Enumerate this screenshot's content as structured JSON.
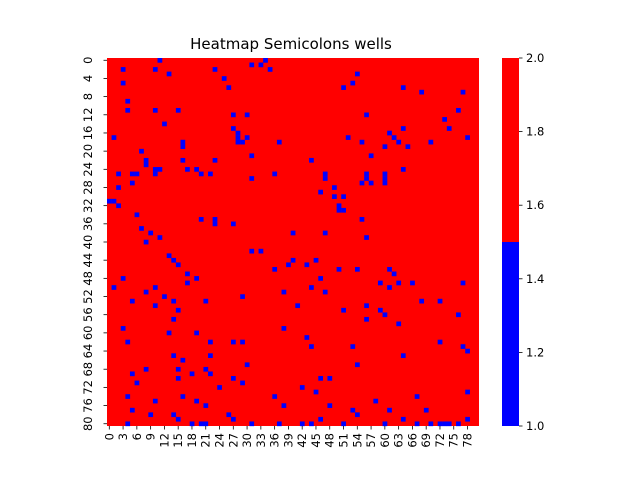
{
  "chart_data": {
    "type": "heatmap",
    "title": "Heatmap Semicolons wells",
    "xlabel": "",
    "ylabel": "",
    "rows": 81,
    "cols": 81,
    "x_tick_labels": [
      "0",
      "3",
      "6",
      "9",
      "12",
      "15",
      "18",
      "21",
      "24",
      "27",
      "30",
      "33",
      "36",
      "39",
      "42",
      "45",
      "48",
      "51",
      "54",
      "57",
      "60",
      "63",
      "66",
      "69",
      "72",
      "75",
      "78"
    ],
    "y_tick_labels": [
      "0",
      "4",
      "8",
      "12",
      "16",
      "20",
      "24",
      "28",
      "32",
      "36",
      "40",
      "44",
      "48",
      "52",
      "56",
      "60",
      "64",
      "68",
      "72",
      "76",
      "80"
    ],
    "colorbar": {
      "range": [
        1.0,
        2.0
      ],
      "boundary": 1.5,
      "tick_labels": [
        "1.0",
        "1.2",
        "1.4",
        "1.6",
        "1.8",
        "2.0"
      ],
      "colors": {
        "low": "#0000ff",
        "high": "#ff0000"
      }
    },
    "background_value": 2,
    "low_value": 1,
    "low_value_cells": [
      [
        0,
        11
      ],
      [
        0,
        34
      ],
      [
        1,
        33
      ],
      [
        1,
        31
      ],
      [
        2,
        3
      ],
      [
        2,
        10
      ],
      [
        2,
        23
      ],
      [
        2,
        35
      ],
      [
        3,
        13
      ],
      [
        3,
        54
      ],
      [
        4,
        25
      ],
      [
        5,
        3
      ],
      [
        5,
        53
      ],
      [
        6,
        26
      ],
      [
        6,
        51
      ],
      [
        6,
        64
      ],
      [
        7,
        68
      ],
      [
        7,
        77
      ],
      [
        9,
        4
      ],
      [
        11,
        4
      ],
      [
        11,
        10
      ],
      [
        11,
        15
      ],
      [
        11,
        76
      ],
      [
        12,
        27
      ],
      [
        12,
        30
      ],
      [
        12,
        56
      ],
      [
        13,
        73
      ],
      [
        14,
        12
      ],
      [
        15,
        27
      ],
      [
        15,
        64
      ],
      [
        15,
        74
      ],
      [
        16,
        28
      ],
      [
        16,
        61
      ],
      [
        17,
        1
      ],
      [
        17,
        28
      ],
      [
        17,
        30
      ],
      [
        17,
        52
      ],
      [
        17,
        62
      ],
      [
        17,
        78
      ],
      [
        18,
        16
      ],
      [
        18,
        28
      ],
      [
        18,
        29
      ],
      [
        18,
        37
      ],
      [
        18,
        55
      ],
      [
        18,
        63
      ],
      [
        18,
        70
      ],
      [
        19,
        16
      ],
      [
        19,
        60
      ],
      [
        19,
        65
      ],
      [
        20,
        7
      ],
      [
        21,
        31
      ],
      [
        21,
        57
      ],
      [
        22,
        8
      ],
      [
        22,
        16
      ],
      [
        22,
        23
      ],
      [
        22,
        44
      ],
      [
        23,
        8
      ],
      [
        24,
        10
      ],
      [
        24,
        11
      ],
      [
        24,
        17
      ],
      [
        24,
        19
      ],
      [
        24,
        64
      ],
      [
        25,
        2
      ],
      [
        25,
        5
      ],
      [
        25,
        6
      ],
      [
        25,
        10
      ],
      [
        25,
        20
      ],
      [
        25,
        22
      ],
      [
        25,
        36
      ],
      [
        25,
        47
      ],
      [
        25,
        56
      ],
      [
        25,
        60
      ],
      [
        26,
        31
      ],
      [
        26,
        47
      ],
      [
        26,
        56
      ],
      [
        26,
        60
      ],
      [
        27,
        5
      ],
      [
        27,
        55
      ],
      [
        27,
        57
      ],
      [
        27,
        60
      ],
      [
        28,
        2
      ],
      [
        28,
        49
      ],
      [
        29,
        46
      ],
      [
        30,
        49
      ],
      [
        30,
        51
      ],
      [
        31,
        0
      ],
      [
        31,
        1
      ],
      [
        32,
        2
      ],
      [
        32,
        50
      ],
      [
        33,
        50
      ],
      [
        33,
        51
      ],
      [
        34,
        6
      ],
      [
        35,
        20
      ],
      [
        35,
        23
      ],
      [
        35,
        55
      ],
      [
        36,
        23
      ],
      [
        36,
        27
      ],
      [
        37,
        7
      ],
      [
        38,
        9
      ],
      [
        38,
        40
      ],
      [
        38,
        47
      ],
      [
        39,
        11
      ],
      [
        39,
        56
      ],
      [
        40,
        8
      ],
      [
        42,
        31
      ],
      [
        42,
        33
      ],
      [
        43,
        13
      ],
      [
        44,
        14
      ],
      [
        44,
        40
      ],
      [
        44,
        45
      ],
      [
        45,
        15
      ],
      [
        45,
        39
      ],
      [
        45,
        43
      ],
      [
        46,
        36
      ],
      [
        46,
        50
      ],
      [
        46,
        54
      ],
      [
        46,
        61
      ],
      [
        47,
        17
      ],
      [
        47,
        62
      ],
      [
        48,
        3
      ],
      [
        48,
        19
      ],
      [
        48,
        46
      ],
      [
        49,
        17
      ],
      [
        49,
        59
      ],
      [
        49,
        63
      ],
      [
        49,
        66
      ],
      [
        49,
        77
      ],
      [
        50,
        1
      ],
      [
        50,
        10
      ],
      [
        50,
        44
      ],
      [
        50,
        61
      ],
      [
        51,
        8
      ],
      [
        51,
        38
      ],
      [
        51,
        47
      ],
      [
        52,
        12
      ],
      [
        52,
        29
      ],
      [
        53,
        5
      ],
      [
        53,
        14
      ],
      [
        53,
        21
      ],
      [
        53,
        68
      ],
      [
        53,
        72
      ],
      [
        54,
        10
      ],
      [
        54,
        41
      ],
      [
        54,
        56
      ],
      [
        55,
        15
      ],
      [
        55,
        51
      ],
      [
        55,
        59
      ],
      [
        56,
        60
      ],
      [
        56,
        76
      ],
      [
        57,
        14
      ],
      [
        57,
        56
      ],
      [
        58,
        63
      ],
      [
        59,
        3
      ],
      [
        59,
        38
      ],
      [
        60,
        13
      ],
      [
        60,
        19
      ],
      [
        61,
        43
      ],
      [
        62,
        4
      ],
      [
        62,
        22
      ],
      [
        62,
        27
      ],
      [
        62,
        29
      ],
      [
        62,
        72
      ],
      [
        63,
        44
      ],
      [
        63,
        53
      ],
      [
        63,
        77
      ],
      [
        64,
        78
      ],
      [
        65,
        14
      ],
      [
        65,
        22
      ],
      [
        65,
        64
      ],
      [
        66,
        16
      ],
      [
        67,
        30
      ],
      [
        67,
        54
      ],
      [
        68,
        8
      ],
      [
        68,
        15
      ],
      [
        68,
        21
      ],
      [
        69,
        5
      ],
      [
        69,
        18
      ],
      [
        69,
        22
      ],
      [
        70,
        15
      ],
      [
        70,
        27
      ],
      [
        70,
        46
      ],
      [
        70,
        48
      ],
      [
        71,
        6
      ],
      [
        71,
        29
      ],
      [
        72,
        24
      ],
      [
        72,
        42
      ],
      [
        73,
        45
      ],
      [
        73,
        78
      ],
      [
        74,
        4
      ],
      [
        74,
        16
      ],
      [
        74,
        36
      ],
      [
        74,
        67
      ],
      [
        75,
        10
      ],
      [
        75,
        19
      ],
      [
        75,
        58
      ],
      [
        76,
        21
      ],
      [
        76,
        38
      ],
      [
        76,
        48
      ],
      [
        77,
        5
      ],
      [
        77,
        53
      ],
      [
        77,
        61
      ],
      [
        77,
        69
      ],
      [
        78,
        9
      ],
      [
        78,
        14
      ],
      [
        78,
        26
      ],
      [
        78,
        54
      ],
      [
        79,
        15
      ],
      [
        79,
        64
      ],
      [
        79,
        78
      ],
      [
        79,
        27
      ],
      [
        79,
        46
      ],
      [
        80,
        4
      ],
      [
        80,
        18
      ],
      [
        80,
        37
      ],
      [
        80,
        42
      ],
      [
        80,
        67
      ],
      [
        80,
        73
      ],
      [
        80,
        74
      ],
      [
        80,
        76
      ],
      [
        80,
        21
      ],
      [
        80,
        20
      ],
      [
        80,
        44
      ],
      [
        80,
        51
      ],
      [
        80,
        60
      ],
      [
        80,
        72
      ],
      [
        80,
        70
      ],
      [
        80,
        31
      ]
    ]
  }
}
